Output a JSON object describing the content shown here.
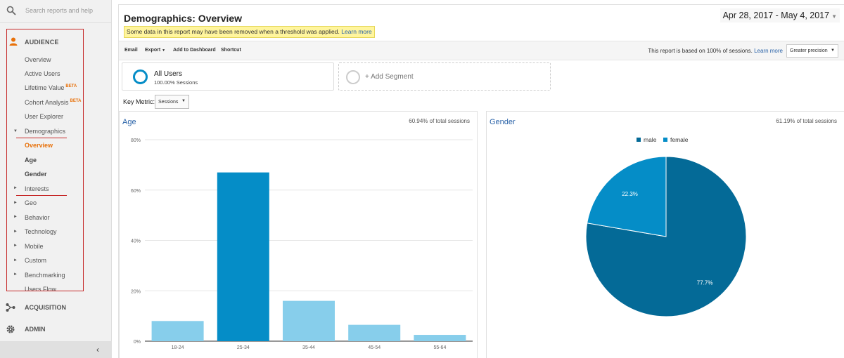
{
  "search": {
    "placeholder": "Search reports and help"
  },
  "sidebar": {
    "audience_label": "AUDIENCE",
    "items": [
      {
        "label": "Overview"
      },
      {
        "label": "Active Users"
      },
      {
        "label": "Lifetime Value",
        "badge": "BETA"
      },
      {
        "label": "Cohort Analysis",
        "badge": "BETA"
      },
      {
        "label": "User Explorer"
      },
      {
        "label": "Demographics",
        "expanded": true
      },
      {
        "label": "Overview",
        "active": true
      },
      {
        "label": "Age"
      },
      {
        "label": "Gender"
      },
      {
        "label": "Interests"
      },
      {
        "label": "Geo"
      },
      {
        "label": "Behavior"
      },
      {
        "label": "Technology"
      },
      {
        "label": "Mobile"
      },
      {
        "label": "Custom"
      },
      {
        "label": "Benchmarking"
      },
      {
        "label": "Users Flow"
      }
    ],
    "acquisition_label": "ACQUISITION",
    "admin_label": "ADMIN"
  },
  "header": {
    "title": "Demographics: Overview",
    "notice": "Some data in this report may have been removed when a threshold was applied.",
    "notice_link": "Learn more",
    "date_range": "Apr 28, 2017 - May 4, 2017"
  },
  "toolbar": {
    "email": "Email",
    "export": "Export",
    "add_to_dashboard": "Add to Dashboard",
    "shortcut": "Shortcut",
    "basis_text": "This report is based on 100% of sessions.",
    "basis_link": "Learn more",
    "precision": "Greater precision"
  },
  "segments": {
    "all_users": "All Users",
    "all_users_sub": "100.00% Sessions",
    "add_segment": "+ Add Segment"
  },
  "key_metric": {
    "label": "Key Metric:",
    "value": "Sessions"
  },
  "colors": {
    "accent": "#058dc7",
    "active": "#e8710a",
    "bar": "#87ceeb",
    "bar_highlight": "#058dc7",
    "pie_male": "#046a97",
    "pie_female": "#058dc7"
  },
  "age_panel": {
    "title": "Age",
    "pct": "60.94% of total sessions"
  },
  "gender_panel": {
    "title": "Gender",
    "pct": "61.19% of total sessions"
  },
  "chart_data": [
    {
      "type": "bar",
      "categories": [
        "18-24",
        "25-34",
        "35-44",
        "45-54",
        "55-64"
      ],
      "values": [
        8,
        67,
        16,
        6.5,
        2.5
      ],
      "ylim": [
        0,
        80
      ],
      "yticks": [
        "0%",
        "20%",
        "40%",
        "60%",
        "80%"
      ],
      "highlight_index": 1,
      "grid": true
    },
    {
      "type": "pie",
      "labels": [
        "male",
        "female"
      ],
      "values": [
        77.7,
        22.3
      ],
      "data_labels": [
        "77.7%",
        "22.3%"
      ],
      "legend": "top"
    }
  ]
}
